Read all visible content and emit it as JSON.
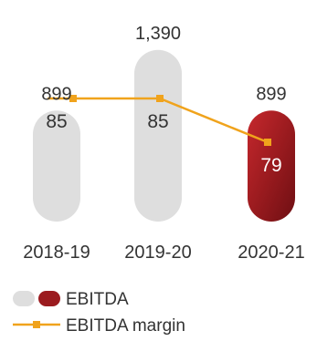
{
  "chart_data": {
    "type": "bar",
    "categories": [
      "2018-19",
      "2019-20",
      "2020-21"
    ],
    "series": [
      {
        "name": "EBITDA",
        "kind": "bar",
        "values": [
          899,
          1390,
          899
        ],
        "value_labels": [
          "899",
          "1,390",
          "899"
        ]
      },
      {
        "name": "EBITDA margin",
        "kind": "line",
        "values": [
          85,
          85,
          79
        ],
        "value_labels": [
          "85",
          "85",
          "79"
        ]
      }
    ],
    "ylim": [
      0,
      1500
    ],
    "grid": false,
    "legend_position": "bottom-left",
    "colors": {
      "bar_default": "#dedede",
      "bar_highlight": "#9b1b1f",
      "line": "#f0a31c",
      "text": "#333333",
      "text_on_highlight": "#ffffff"
    }
  },
  "legend": {
    "ebitda_label": "EBITDA",
    "margin_label": "EBITDA margin"
  }
}
